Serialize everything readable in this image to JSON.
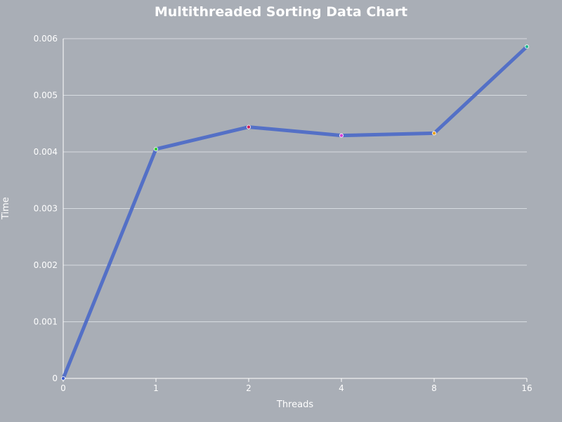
{
  "chart_data": {
    "type": "line",
    "title": "Multithreaded Sorting Data Chart",
    "xlabel": "Threads",
    "ylabel": "Time",
    "categories": [
      "0",
      "1",
      "2",
      "4",
      "8",
      "16"
    ],
    "series": [
      {
        "values": [
          0,
          0.00405,
          0.00444,
          0.00429,
          0.00433,
          0.00586
        ],
        "color": "#5470c6",
        "point_colors": [
          "#3d5ccf",
          "#33cc33",
          "#cc1f5c",
          "#d63fd6",
          "#e6a020",
          "#22b88f"
        ]
      }
    ],
    "ylim": [
      0,
      0.006
    ],
    "yticks": [
      "0",
      "0.001",
      "0.002",
      "0.003",
      "0.004",
      "0.005",
      "0.006"
    ],
    "grid": true,
    "legend": "none",
    "background": "#a9aeb6"
  }
}
